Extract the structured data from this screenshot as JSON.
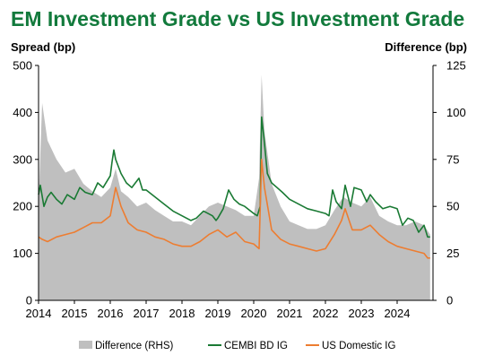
{
  "chart_data": {
    "type": "line",
    "title": "EM Investment Grade vs US Investment Grade",
    "ylabel_left": "Spread (bp)",
    "ylabel_right": "Difference (bp)",
    "ylim_left": [
      0,
      500
    ],
    "ylim_right": [
      0,
      125
    ],
    "yticks_left": [
      "0",
      "100",
      "200",
      "300",
      "400",
      "500"
    ],
    "yticks_right": [
      "0",
      "25",
      "50",
      "75",
      "100",
      "125"
    ],
    "xlim": [
      2014,
      2025
    ],
    "xticks": [
      "2014",
      "2015",
      "2016",
      "2017",
      "2018",
      "2019",
      "2020",
      "2021",
      "2022",
      "2023",
      "2024"
    ],
    "grid": false,
    "legend_position": "bottom",
    "colors": {
      "difference": "#bfbfbf",
      "cembi": "#1a7a34",
      "us": "#ed7d31",
      "title": "#127a3c"
    },
    "series": [
      {
        "name": "Difference (RHS)",
        "type": "area",
        "axis": "right",
        "x": [
          2014.0,
          2014.1,
          2014.25,
          2014.5,
          2014.75,
          2015.0,
          2015.25,
          2015.5,
          2015.75,
          2016.0,
          2016.15,
          2016.3,
          2016.5,
          2016.75,
          2017.0,
          2017.25,
          2017.5,
          2017.75,
          2018.0,
          2018.25,
          2018.5,
          2018.75,
          2019.0,
          2019.25,
          2019.5,
          2019.75,
          2020.0,
          2020.15,
          2020.22,
          2020.3,
          2020.5,
          2020.75,
          2021.0,
          2021.25,
          2021.5,
          2021.75,
          2022.0,
          2022.25,
          2022.5,
          2022.75,
          2023.0,
          2023.25,
          2023.5,
          2023.75,
          2024.0,
          2024.25,
          2024.5,
          2024.75,
          2024.92
        ],
        "values": [
          52,
          105,
          85,
          75,
          68,
          70,
          62,
          58,
          55,
          60,
          70,
          58,
          55,
          50,
          52,
          48,
          45,
          42,
          42,
          40,
          45,
          50,
          52,
          50,
          48,
          45,
          45,
          65,
          120,
          90,
          62,
          50,
          42,
          40,
          38,
          38,
          40,
          48,
          55,
          52,
          50,
          55,
          45,
          42,
          40,
          40,
          42,
          40,
          35
        ]
      },
      {
        "name": "CEMBI BD IG",
        "type": "line",
        "axis": "left",
        "x": [
          2014.0,
          2014.05,
          2014.15,
          2014.25,
          2014.35,
          2014.5,
          2014.65,
          2014.8,
          2015.0,
          2015.15,
          2015.3,
          2015.5,
          2015.65,
          2015.8,
          2016.0,
          2016.05,
          2016.1,
          2016.15,
          2016.3,
          2016.45,
          2016.6,
          2016.8,
          2016.9,
          2017.0,
          2017.25,
          2017.5,
          2017.75,
          2018.0,
          2018.25,
          2018.4,
          2018.6,
          2018.85,
          2018.95,
          2019.0,
          2019.15,
          2019.3,
          2019.45,
          2019.6,
          2019.75,
          2020.0,
          2020.1,
          2020.18,
          2020.22,
          2020.28,
          2020.38,
          2020.5,
          2020.65,
          2020.8,
          2021.0,
          2021.25,
          2021.5,
          2021.75,
          2022.0,
          2022.1,
          2022.2,
          2022.3,
          2022.45,
          2022.55,
          2022.7,
          2022.8,
          2023.0,
          2023.15,
          2023.25,
          2023.4,
          2023.6,
          2023.8,
          2024.0,
          2024.15,
          2024.3,
          2024.45,
          2024.6,
          2024.75,
          2024.85,
          2024.92
        ],
        "values": [
          225,
          245,
          200,
          220,
          230,
          215,
          205,
          225,
          215,
          240,
          230,
          225,
          250,
          240,
          265,
          295,
          320,
          300,
          270,
          250,
          240,
          260,
          235,
          235,
          220,
          205,
          190,
          180,
          170,
          175,
          190,
          180,
          170,
          175,
          195,
          235,
          215,
          205,
          200,
          185,
          180,
          200,
          390,
          350,
          270,
          250,
          240,
          230,
          215,
          205,
          195,
          190,
          185,
          180,
          235,
          210,
          195,
          245,
          200,
          240,
          235,
          210,
          225,
          210,
          195,
          200,
          195,
          160,
          175,
          170,
          145,
          160,
          135,
          135
        ]
      },
      {
        "name": "US Domestic IG",
        "type": "line",
        "axis": "left",
        "x": [
          2014.0,
          2014.1,
          2014.25,
          2014.5,
          2014.75,
          2015.0,
          2015.25,
          2015.5,
          2015.75,
          2016.0,
          2016.1,
          2016.15,
          2016.3,
          2016.5,
          2016.75,
          2017.0,
          2017.25,
          2017.5,
          2017.75,
          2018.0,
          2018.25,
          2018.5,
          2018.75,
          2019.0,
          2019.25,
          2019.5,
          2019.75,
          2020.0,
          2020.15,
          2020.22,
          2020.3,
          2020.5,
          2020.75,
          2021.0,
          2021.25,
          2021.5,
          2021.75,
          2022.0,
          2022.25,
          2022.45,
          2022.55,
          2022.75,
          2023.0,
          2023.25,
          2023.5,
          2023.75,
          2024.0,
          2024.25,
          2024.5,
          2024.75,
          2024.85,
          2024.92
        ],
        "values": [
          135,
          130,
          125,
          135,
          140,
          145,
          155,
          165,
          165,
          180,
          220,
          240,
          200,
          165,
          150,
          145,
          135,
          130,
          120,
          115,
          115,
          125,
          140,
          150,
          135,
          145,
          125,
          120,
          110,
          300,
          240,
          150,
          130,
          120,
          115,
          110,
          105,
          110,
          140,
          170,
          195,
          150,
          150,
          160,
          140,
          125,
          115,
          110,
          105,
          100,
          90,
          90
        ]
      }
    ]
  }
}
